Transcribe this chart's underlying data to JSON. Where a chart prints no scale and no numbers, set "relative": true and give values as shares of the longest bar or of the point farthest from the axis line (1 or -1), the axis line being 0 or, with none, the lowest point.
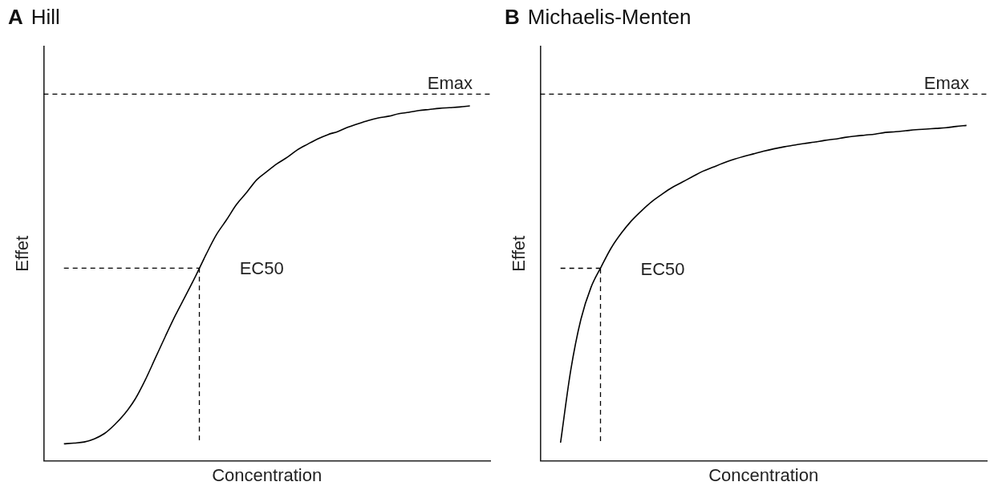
{
  "chart_data": [
    {
      "type": "line",
      "title": "Hill",
      "annotations": [
        "A"
      ],
      "xlabel": "Concentration",
      "ylabel": "Effet",
      "relative": true,
      "grid": false,
      "legend": false,
      "tick_labels": false,
      "marker": "none",
      "color": "#000000",
      "categories": [
        null,
        null,
        null,
        null,
        null,
        null,
        null,
        null,
        null,
        null,
        null,
        null,
        null,
        null,
        null,
        null,
        null,
        null,
        null,
        null,
        null,
        null,
        null,
        null,
        null,
        null,
        null,
        null,
        null,
        null,
        null,
        null,
        null,
        null,
        null,
        null,
        null,
        null,
        null,
        null,
        null,
        null,
        null,
        null,
        null
      ],
      "values": [
        null,
        null,
        0.048,
        0.05,
        0.053,
        0.062,
        0.077,
        0.102,
        0.133,
        0.173,
        0.227,
        0.289,
        0.351,
        0.411,
        0.466,
        0.522,
        0.581,
        0.636,
        0.678,
        0.722,
        0.756,
        0.792,
        0.815,
        0.837,
        0.855,
        0.876,
        0.892,
        0.907,
        0.919,
        0.928,
        0.94,
        0.95,
        0.959,
        0.966,
        0.971,
        0.978,
        0.982,
        0.987,
        0.99,
        0.993,
        0.995,
        0.997,
        1,
        null,
        null
      ],
      "ref_lines": [
        {
          "axis": "y",
          "value": 1.033,
          "label": "Emax",
          "color": "#000000",
          "line_style": "dashed"
        },
        {
          "axis": "y",
          "value": 0.543,
          "label": "EC50",
          "color": "#000000",
          "line_style": "dashed"
        }
      ]
    },
    {
      "type": "line",
      "title": "Michaelis-Menten",
      "annotations": [
        "B"
      ],
      "xlabel": "Concentration",
      "ylabel": "Effet",
      "relative": true,
      "grid": false,
      "legend": false,
      "tick_labels": false,
      "marker": "none",
      "color": "#000000",
      "categories": [
        null,
        null,
        null,
        null,
        null,
        null,
        null,
        null,
        null,
        null,
        null,
        null,
        null,
        null,
        null,
        null,
        null,
        null,
        null,
        null,
        null,
        null,
        null,
        null,
        null,
        null,
        null,
        null,
        null,
        null,
        null,
        null,
        null,
        null,
        null,
        null,
        null,
        null,
        null,
        null,
        null,
        null,
        null,
        null,
        null
      ],
      "values": [
        null,
        null,
        0.054,
        0.269,
        0.421,
        0.517,
        0.578,
        0.635,
        0.679,
        0.716,
        0.746,
        0.773,
        0.795,
        0.815,
        0.831,
        0.847,
        0.863,
        0.875,
        0.887,
        0.898,
        0.907,
        0.915,
        0.923,
        0.93,
        0.936,
        0.941,
        0.946,
        0.95,
        0.955,
        0.959,
        0.964,
        0.968,
        0.971,
        0.974,
        0.979,
        0.981,
        0.984,
        0.987,
        0.989,
        0.991,
        0.993,
        0.997,
        1,
        null,
        null
      ],
      "ref_lines": [
        {
          "axis": "y",
          "value": 1.093,
          "label": "Emax",
          "color": "#000000",
          "line_style": "dashed"
        },
        {
          "axis": "y",
          "value": 0.574,
          "label": "EC50",
          "color": "#000000",
          "line_style": "dashed"
        }
      ]
    }
  ]
}
